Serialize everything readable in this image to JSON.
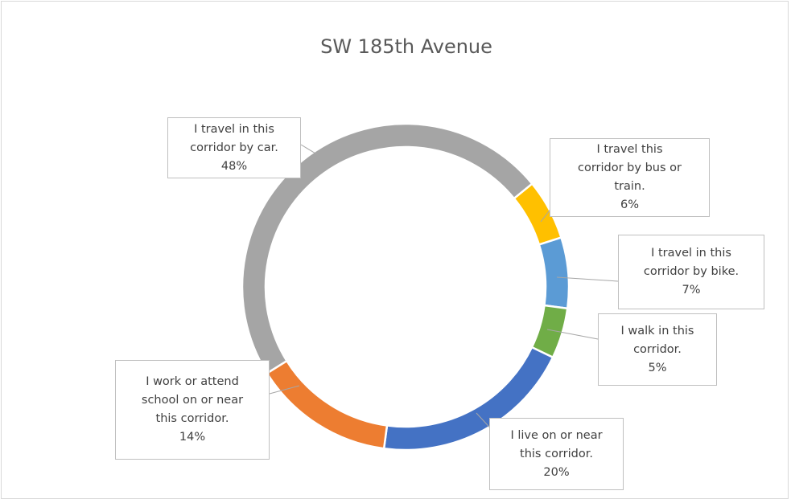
{
  "chart_data": {
    "type": "donut",
    "title": "SW 185th Avenue",
    "categories": [
      "I travel in this corridor by car.",
      "I travel this corridor by bus or train.",
      "I travel in this corridor by bike.",
      "I walk in this corridor.",
      "I live on or near this corridor.",
      "I work or attend school on or near this corridor."
    ],
    "values": [
      48,
      6,
      7,
      5,
      20,
      14
    ],
    "value_labels": [
      "48%",
      "6%",
      "7%",
      "5%",
      "20%",
      "14%"
    ],
    "colors": [
      "#a5a5a5",
      "#ffc000",
      "#5b9bd5",
      "#70ad47",
      "#4472c4",
      "#ed7d31"
    ]
  }
}
